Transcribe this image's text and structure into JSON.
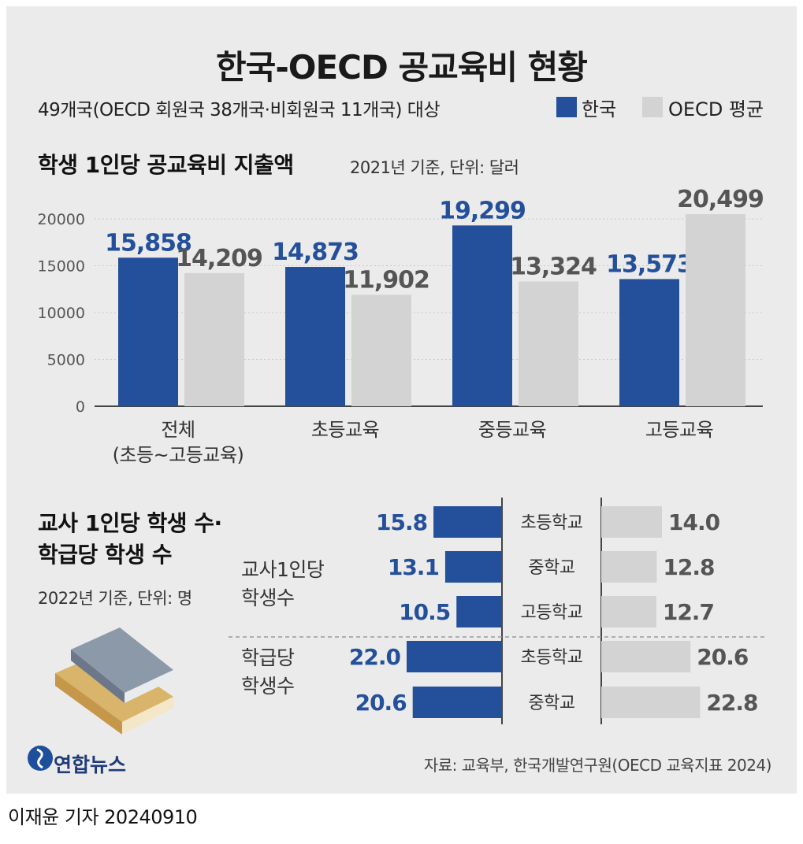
{
  "title": "한국-OECD 공교육비 현황",
  "subtitle": "49개국(OECD 회원국 38개국·비회원국 11개국) 대상",
  "legend": [
    {
      "label": "한국",
      "color": "#24509b"
    },
    {
      "label": "OECD 평균",
      "color": "#d3d3d3"
    }
  ],
  "section1": {
    "title": "학생 1인당 공교육비 지출액",
    "note": "2021년 기준, 단위: 달러"
  },
  "section2": {
    "title_line1": "교사 1인당 학생 수·",
    "title_line2": "학급당 학생 수",
    "note": "2022년 기준, 단위: 명"
  },
  "source": "자료: 교육부, 한국개발연구원(OECD 교육지표 2024)",
  "logo": "연합뉴스",
  "credit": "이재윤 기자  20240910",
  "chart_data": [
    {
      "type": "bar",
      "title": "학생 1인당 공교육비 지출액",
      "categories": [
        "전체\n(초등~고등교육)",
        "초등교육",
        "중등교육",
        "고등교육"
      ],
      "series": [
        {
          "name": "한국",
          "values": [
            15858,
            14873,
            19299,
            13573
          ],
          "labels": [
            "15,858",
            "14,873",
            "19,299",
            "13,573"
          ]
        },
        {
          "name": "OECD 평균",
          "values": [
            14209,
            11902,
            13324,
            20499
          ],
          "labels": [
            "14,209",
            "11,902",
            "13,324",
            "20,499"
          ]
        }
      ],
      "yticks": [
        "0",
        "5000",
        "10000",
        "15000",
        "20000"
      ],
      "ylim": [
        0,
        21500
      ],
      "grid": true
    },
    {
      "type": "bar",
      "orientation": "horizontal",
      "title": "교사 1인당 학생 수·학급당 학생 수",
      "groups": [
        {
          "label": "교사1인당\n학생수",
          "categories": [
            "초등학교",
            "중학교",
            "고등학교"
          ],
          "korea": [
            15.8,
            13.1,
            10.5
          ],
          "oecd": [
            14.0,
            12.8,
            12.7
          ],
          "korea_labels": [
            "15.8",
            "13.1",
            "10.5"
          ],
          "oecd_labels": [
            "14.0",
            "12.8",
            "12.7"
          ]
        },
        {
          "label": "학급당\n학생수",
          "categories": [
            "초등학교",
            "중학교"
          ],
          "korea": [
            22.0,
            20.6
          ],
          "oecd": [
            20.6,
            22.8
          ],
          "korea_labels": [
            "22.0",
            "20.6"
          ],
          "oecd_labels": [
            "20.6",
            "22.8"
          ]
        }
      ]
    }
  ]
}
